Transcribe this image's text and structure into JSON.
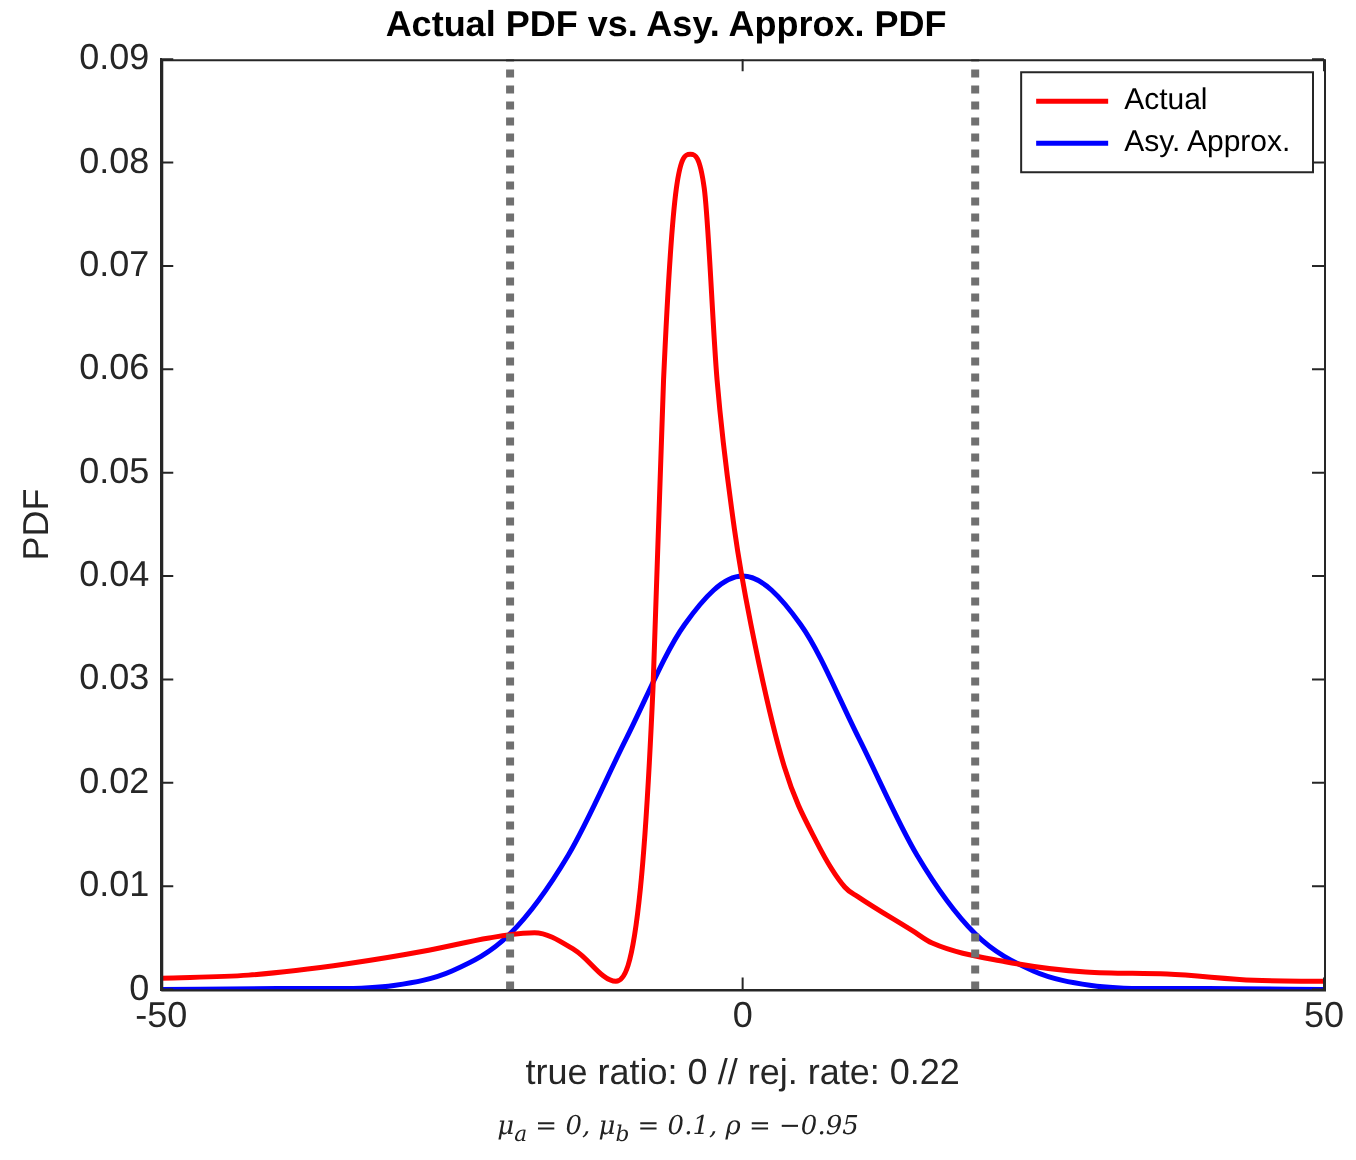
{
  "chart_data": {
    "type": "line",
    "title": "Actual PDF vs. Asy. Approx. PDF",
    "xlabel": "true ratio: 0 // rej. rate: 0.22",
    "ylabel": "PDF",
    "annotations": [
      "μ$_{a}$ = 0, μ$_{b}$ = 0.1, ρ = −0.95"
    ],
    "series": [
      {
        "name": "Actual",
        "color": "#ff0000",
        "x": [
          -50,
          -42.5,
          -34,
          -27,
          -21.8,
          -17.9,
          -14.4,
          -10.9,
          -8.8,
          -7.7,
          -6.8,
          -5.7,
          -4.5,
          -3.3,
          -2.2,
          -0.7,
          0.7,
          3.6,
          6.4,
          8.8,
          9.9,
          14.6,
          16.3,
          22.6,
          29.5,
          36.5,
          44,
          50
        ],
        "values": [
          0.0011,
          0.0014,
          0.0025,
          0.0038,
          0.005,
          0.0055,
          0.0038,
          0.0008,
          0.0097,
          0.0294,
          0.059,
          0.0775,
          0.0808,
          0.0775,
          0.059,
          0.0445,
          0.0354,
          0.0215,
          0.0142,
          0.0099,
          0.009,
          0.0057,
          0.0045,
          0.0027,
          0.0017,
          0.0015,
          0.0009,
          0.0008
        ]
      },
      {
        "name": "Asy. Approx.",
        "color": "#0000ff",
        "x": [
          -50,
          -40,
          -35,
          -30,
          -25,
          -20,
          -15,
          -10,
          -5,
          0,
          5,
          10,
          15,
          20,
          25,
          30,
          35,
          40,
          50
        ],
        "values": [
          0,
          0.0001,
          0.0001,
          0.0004,
          0.0018,
          0.0054,
          0.013,
          0.0243,
          0.0353,
          0.04,
          0.0353,
          0.0243,
          0.013,
          0.0054,
          0.0018,
          0.0004,
          0.0001,
          0.0001,
          0
        ]
      }
    ],
    "xlim": [
      -50,
      50
    ],
    "xticks": [
      -50,
      0,
      50
    ],
    "ylim": [
      0,
      0.09
    ],
    "yticks": [
      0,
      0.01,
      0.02,
      0.03,
      0.04,
      0.05,
      0.06,
      0.07,
      0.08,
      0.09
    ],
    "ref_lines": [
      {
        "axis": "x",
        "value": -20,
        "color": "#707070",
        "line_style": "dotted"
      },
      {
        "axis": "x",
        "value": 20,
        "color": "#707070",
        "line_style": "dotted"
      }
    ],
    "grid": false,
    "legend": "top right",
    "marker": "none",
    "line_style": "solid"
  }
}
